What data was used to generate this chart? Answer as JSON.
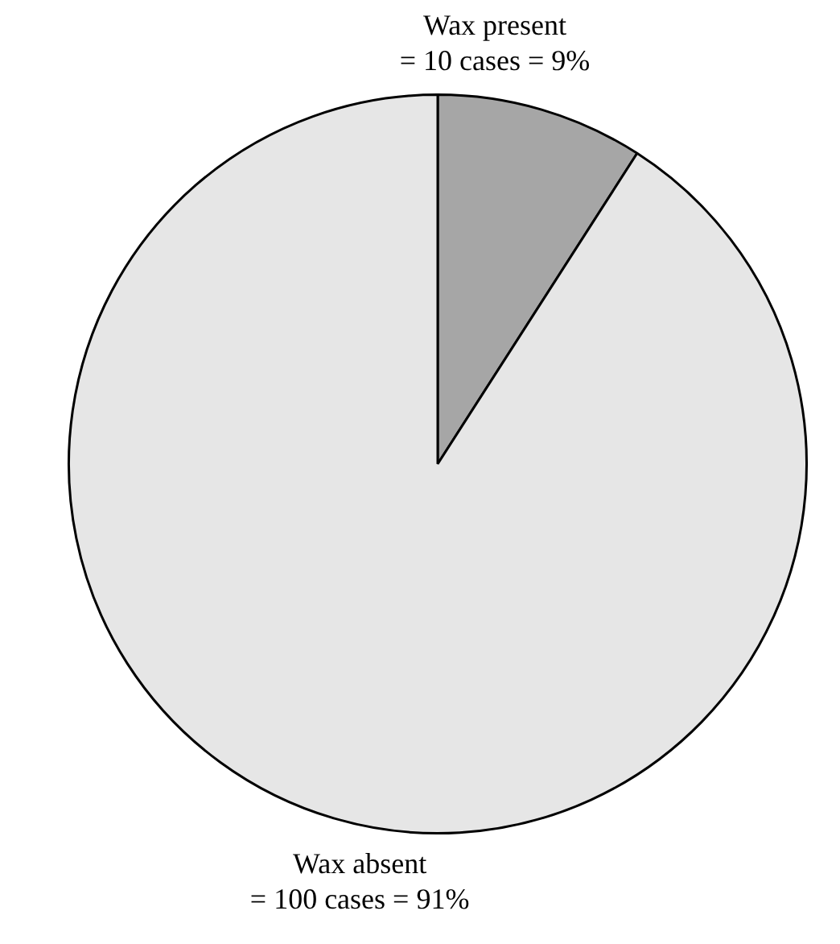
{
  "chart_data": {
    "type": "pie",
    "categories": [
      "Wax present",
      "Wax absent"
    ],
    "values": [
      10,
      100
    ],
    "value_labels": [
      "= 10 cases = 9%",
      "= 100 cases = 91%"
    ],
    "colors": [
      "#a6a6a6",
      "#e6e6e6"
    ],
    "legend": false
  }
}
